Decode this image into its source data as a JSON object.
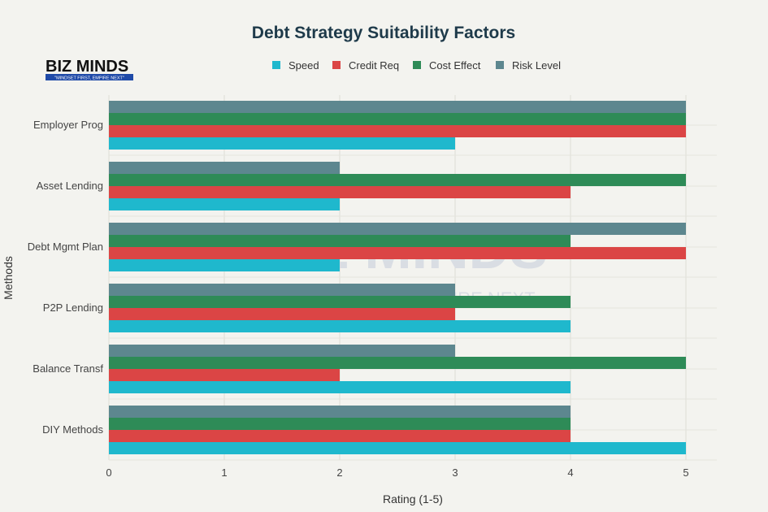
{
  "logo": {
    "text": "BIZ MINDS",
    "tagline": "\"MINDSET FIRST, EMPIRE NEXT\""
  },
  "watermark": {
    "text": "BIZ MINDS",
    "tagline": "MINDSET FIRST, EMPIRE NEXT"
  },
  "chart_data": {
    "type": "bar",
    "orientation": "horizontal",
    "title": "Debt Strategy Suitability Factors",
    "xlabel": "Rating (1-5)",
    "ylabel": "Methods",
    "xlim": [
      0,
      5.27
    ],
    "xticks": [
      0,
      1,
      2,
      3,
      4,
      5
    ],
    "grid": true,
    "legend_position": "top",
    "categories": [
      "DIY Methods",
      "Balance Transf",
      "P2P Lending",
      "Debt Mgmt Plan",
      "Asset Lending",
      "Employer Prog"
    ],
    "series": [
      {
        "name": "Speed",
        "color": "#1FB8CD",
        "values": [
          5,
          4,
          4,
          2,
          2,
          3
        ]
      },
      {
        "name": "Credit Req",
        "color": "#DB4545",
        "values": [
          4,
          2,
          3,
          5,
          4,
          5
        ]
      },
      {
        "name": "Cost Effect",
        "color": "#2E8B57",
        "values": [
          4,
          5,
          4,
          4,
          5,
          5
        ]
      },
      {
        "name": "Risk Level",
        "color": "#5D878F",
        "values": [
          4,
          3,
          3,
          5,
          2,
          5
        ]
      }
    ]
  }
}
